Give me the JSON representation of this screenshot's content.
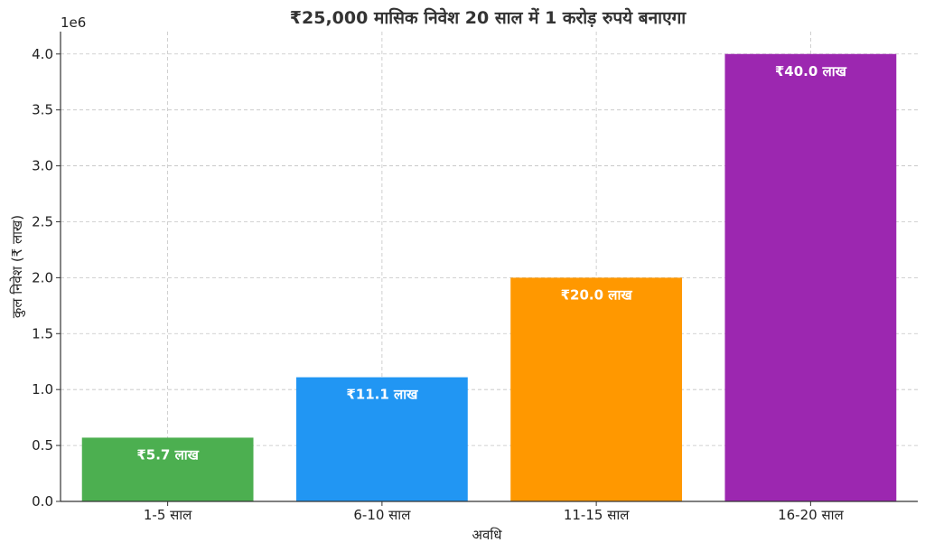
{
  "chart_data": {
    "type": "bar",
    "title": "₹25,000 मासिक निवेश 20 साल में 1 करोड़ रुपये बनाएगा",
    "xlabel": "अवधि",
    "ylabel": "कुल निवेश (₹ लाख)",
    "y_offset_label": "1e6",
    "categories": [
      "1-5 साल",
      "6-10 साल",
      "11-15 साल",
      "16-20 साल"
    ],
    "values": [
      570000,
      1110000,
      2000000,
      4000000
    ],
    "data_labels": [
      "₹5.7 लाख",
      "₹11.1 लाख",
      "₹20.0 लाख",
      "₹40.0 लाख"
    ],
    "colors": [
      "#4caf50",
      "#2196f3",
      "#ff9800",
      "#9c27b0"
    ],
    "yticks": [
      {
        "value": 0,
        "label": "0.0"
      },
      {
        "value": 500000,
        "label": "0.5"
      },
      {
        "value": 1000000,
        "label": "1.0"
      },
      {
        "value": 1500000,
        "label": "1.5"
      },
      {
        "value": 2000000,
        "label": "2.0"
      },
      {
        "value": 2500000,
        "label": "2.5"
      },
      {
        "value": 3000000,
        "label": "3.0"
      },
      {
        "value": 3500000,
        "label": "3.5"
      },
      {
        "value": 4000000,
        "label": "4.0"
      }
    ],
    "ylim": [
      0,
      4200000
    ],
    "grid": true,
    "legend": "none"
  }
}
